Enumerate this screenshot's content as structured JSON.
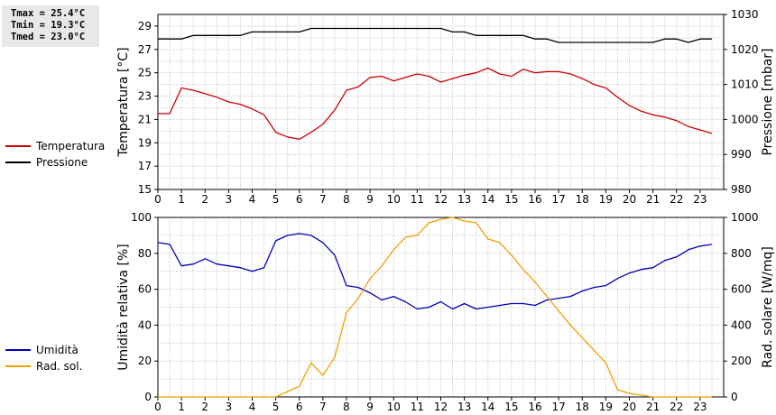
{
  "stats": {
    "tmax": "Tmax = 25.4°C",
    "tmin": "Tmin = 19.3°C",
    "tmed": "Tmed = 23.0°C"
  },
  "chart_data": [
    {
      "type": "line",
      "x_ticks": [
        "0",
        "1",
        "2",
        "3",
        "4",
        "5",
        "6",
        "7",
        "8",
        "9",
        "10",
        "11",
        "12",
        "13",
        "14",
        "15",
        "16",
        "17",
        "18",
        "19",
        "20",
        "21",
        "22",
        "23"
      ],
      "ylabel": "Temperatura [°C]",
      "ylabel_right": "Pressione [mbar]",
      "ylim": [
        15,
        30
      ],
      "ylim_right": [
        980,
        1030
      ],
      "yticks": [
        "15",
        "17",
        "19",
        "21",
        "23",
        "25",
        "27",
        "29"
      ],
      "yticks_right": [
        "980",
        "990",
        "1000",
        "1010",
        "1020",
        "1030"
      ],
      "grid": true,
      "legend_position": "left",
      "series": [
        {
          "name": "Temperatura",
          "color": "#cc0000",
          "axis": "left",
          "x": [
            0,
            0.5,
            1,
            1.5,
            2,
            2.5,
            3,
            3.5,
            4,
            4.5,
            5,
            5.5,
            6,
            6.5,
            7,
            7.5,
            8,
            8.5,
            9,
            9.5,
            10,
            10.5,
            11,
            11.5,
            12,
            12.5,
            13,
            13.5,
            14,
            14.5,
            15,
            15.5,
            16,
            16.5,
            17,
            17.5,
            18,
            18.5,
            19,
            19.5,
            20,
            20.5,
            21,
            21.5,
            22,
            22.5,
            23,
            23.5
          ],
          "values": [
            21.5,
            21.5,
            23.7,
            23.5,
            23.2,
            22.9,
            22.5,
            22.3,
            21.9,
            21.4,
            19.9,
            19.5,
            19.3,
            19.9,
            20.6,
            21.8,
            23.5,
            23.8,
            24.6,
            24.7,
            24.3,
            24.6,
            24.9,
            24.7,
            24.2,
            24.5,
            24.8,
            25.0,
            25.4,
            24.9,
            24.7,
            25.3,
            25.0,
            25.1,
            25.1,
            24.9,
            24.5,
            24.0,
            23.7,
            22.9,
            22.2,
            21.7,
            21.4,
            21.2,
            20.9,
            20.4,
            20.1,
            19.8
          ]
        },
        {
          "name": "Pressione",
          "color": "#000000",
          "axis": "right",
          "x": [
            0,
            1,
            1.5,
            3.5,
            4,
            6,
            6.5,
            12,
            12.5,
            13,
            13.5,
            15.5,
            16,
            16.5,
            17,
            20.5,
            21,
            21.5,
            22,
            22.5,
            23,
            23.5
          ],
          "values": [
            1023,
            1023,
            1024,
            1024,
            1025,
            1025,
            1026,
            1026,
            1025,
            1025,
            1024,
            1024,
            1023,
            1023,
            1022,
            1022,
            1022,
            1023,
            1023,
            1022,
            1023,
            1023
          ]
        }
      ]
    },
    {
      "type": "line",
      "x_ticks": [
        "0",
        "1",
        "2",
        "3",
        "4",
        "5",
        "6",
        "7",
        "8",
        "9",
        "10",
        "11",
        "12",
        "13",
        "14",
        "15",
        "16",
        "17",
        "18",
        "19",
        "20",
        "21",
        "22",
        "23"
      ],
      "ylabel": "Umidità relativa [%]",
      "ylabel_right": "Rad. solare [W/mq]",
      "ylim": [
        0,
        100
      ],
      "ylim_right": [
        0,
        1000
      ],
      "yticks": [
        "0",
        "20",
        "40",
        "60",
        "80",
        "100"
      ],
      "yticks_right": [
        "0",
        "200",
        "400",
        "600",
        "800",
        "1000"
      ],
      "grid": true,
      "legend_position": "left",
      "series": [
        {
          "name": "Umidità",
          "color": "#0000bb",
          "axis": "left",
          "x": [
            0,
            0.5,
            1,
            1.5,
            2,
            2.5,
            3,
            3.5,
            4,
            4.5,
            5,
            5.5,
            6,
            6.5,
            7,
            7.5,
            8,
            8.5,
            9,
            9.5,
            10,
            10.5,
            11,
            11.5,
            12,
            12.5,
            13,
            13.5,
            14,
            14.5,
            15,
            15.5,
            16,
            16.5,
            17,
            17.5,
            18,
            18.5,
            19,
            19.5,
            20,
            20.5,
            21,
            21.5,
            22,
            22.5,
            23,
            23.5
          ],
          "values": [
            86,
            85,
            73,
            74,
            77,
            74,
            73,
            72,
            70,
            72,
            87,
            90,
            91,
            90,
            86,
            79,
            62,
            61,
            58,
            54,
            56,
            53,
            49,
            50,
            53,
            49,
            52,
            49,
            50,
            51,
            52,
            52,
            51,
            54,
            55,
            56,
            59,
            61,
            62,
            66,
            69,
            71,
            72,
            76,
            78,
            82,
            84,
            85
          ]
        },
        {
          "name": "Rad. sol.",
          "color": "#f0a000",
          "axis": "right",
          "x": [
            0,
            1,
            2,
            3,
            4,
            5,
            5.5,
            6,
            6.5,
            7,
            7.5,
            8,
            8.5,
            9,
            9.5,
            10,
            10.5,
            11,
            11.5,
            12,
            12.5,
            13,
            13.5,
            14,
            14.5,
            15,
            15.5,
            16,
            16.5,
            17,
            17.5,
            18,
            18.5,
            19,
            19.5,
            20,
            21,
            22,
            23,
            23.5
          ],
          "values": [
            0,
            0,
            0,
            0,
            0,
            0,
            30,
            60,
            190,
            120,
            220,
            470,
            550,
            660,
            730,
            820,
            890,
            900,
            970,
            990,
            1000,
            980,
            970,
            880,
            860,
            790,
            710,
            640,
            560,
            480,
            400,
            330,
            260,
            190,
            40,
            20,
            0,
            0,
            0,
            0
          ]
        }
      ]
    }
  ]
}
